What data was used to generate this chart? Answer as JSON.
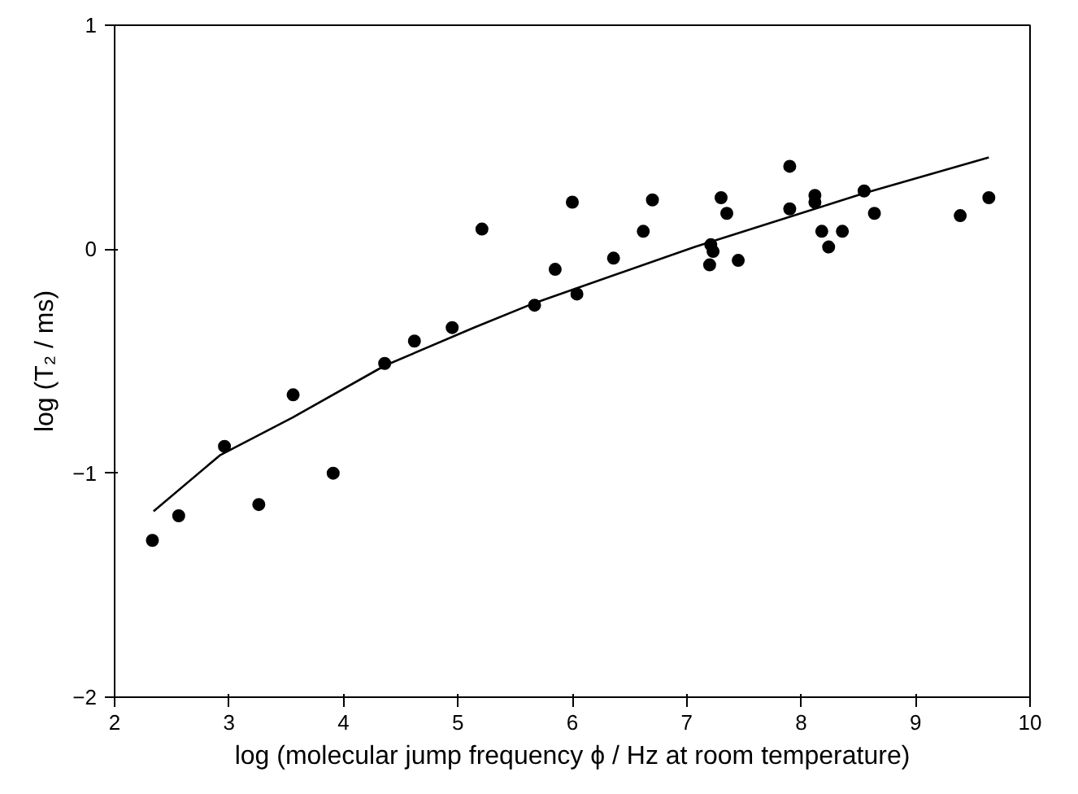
{
  "chart_data": {
    "type": "scatter",
    "xlabel": "log (molecular jump frequency ϕ / Hz at room temperature)",
    "ylabel": "log (T₂ / ms)",
    "xlim": [
      2,
      10
    ],
    "ylim": [
      -2,
      1
    ],
    "xticks": [
      2,
      3,
      4,
      5,
      6,
      7,
      8,
      9,
      10
    ],
    "yticks": [
      -2,
      -1,
      0,
      1
    ],
    "grid": false,
    "marker": "circle",
    "series": [
      {
        "color": "#000000",
        "x": [
          2.33,
          2.56,
          2.96,
          3.26,
          3.56,
          3.91,
          4.36,
          4.62,
          4.95,
          5.21,
          5.67,
          5.85,
          6.0,
          6.04,
          6.36,
          6.62,
          6.7,
          7.2,
          7.21,
          7.23,
          7.3,
          7.35,
          7.45,
          7.9,
          7.9,
          8.12,
          8.12,
          8.18,
          8.24,
          8.36,
          8.55,
          8.64,
          9.39,
          9.64
        ],
        "values": [
          -1.3,
          -1.19,
          -0.88,
          -1.14,
          -0.65,
          -1.0,
          -0.51,
          -0.41,
          -0.35,
          0.09,
          -0.25,
          -0.09,
          0.21,
          -0.2,
          -0.04,
          0.08,
          0.22,
          -0.07,
          0.02,
          -0.01,
          0.23,
          0.16,
          -0.05,
          0.37,
          0.18,
          0.24,
          0.21,
          0.08,
          0.01,
          0.08,
          0.26,
          0.16,
          0.15,
          0.23
        ]
      },
      {
        "type": "line",
        "color": "#000000",
        "marker": "none",
        "x": [
          2.34,
          2.92,
          3.56,
          4.36,
          5.14,
          5.67,
          7.07,
          8.55,
          9.64
        ],
        "values": [
          -1.17,
          -0.92,
          -0.75,
          -0.52,
          -0.35,
          -0.24,
          0.01,
          0.25,
          0.41
        ]
      }
    ]
  }
}
